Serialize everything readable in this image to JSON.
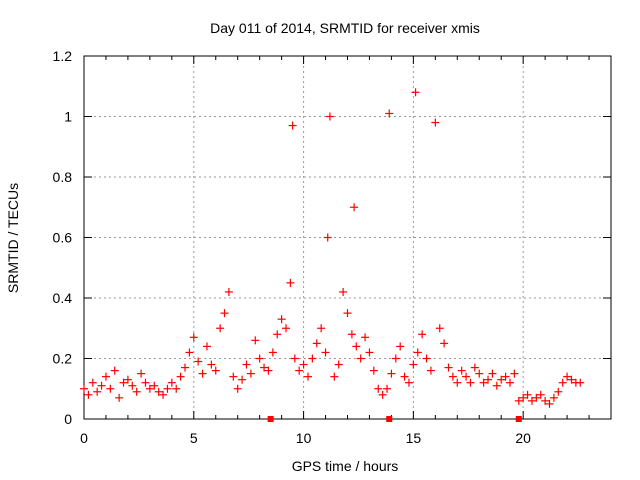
{
  "chart_data": {
    "type": "scatter",
    "title": "Day 011 of 2014, SRMTID for receiver xmis",
    "xlabel": "GPS time / hours",
    "ylabel": "SRMTID / TECUs",
    "xlim": [
      0,
      24
    ],
    "ylim": [
      0,
      1.2
    ],
    "xticks": [
      0,
      5,
      10,
      15,
      20
    ],
    "xtick_labels": [
      "0",
      "5",
      "10",
      "15",
      "20"
    ],
    "yticks": [
      0,
      0.2,
      0.4,
      0.6,
      0.8,
      1.0,
      1.2
    ],
    "ytick_labels": [
      "0",
      "0.2",
      "0.4",
      "0.6",
      "0.8",
      "1",
      "1.2"
    ],
    "grid": true,
    "marker": "+",
    "series_color": "#ff0000",
    "series": [
      {
        "name": "SRMTID",
        "x": [
          0.0,
          0.2,
          0.4,
          0.6,
          0.8,
          1.0,
          1.2,
          1.4,
          1.6,
          1.8,
          2.0,
          2.2,
          2.4,
          2.6,
          2.8,
          3.0,
          3.2,
          3.4,
          3.6,
          3.8,
          4.0,
          4.2,
          4.4,
          4.6,
          4.8,
          5.0,
          5.2,
          5.4,
          5.6,
          5.8,
          6.0,
          6.2,
          6.4,
          6.6,
          6.8,
          7.0,
          7.2,
          7.4,
          7.6,
          7.8,
          8.0,
          8.2,
          8.4,
          8.6,
          8.8,
          9.0,
          9.2,
          9.4,
          9.5,
          9.6,
          9.8,
          10.0,
          10.2,
          10.4,
          10.6,
          10.8,
          11.0,
          11.1,
          11.2,
          11.4,
          11.6,
          11.8,
          12.0,
          12.2,
          12.3,
          12.4,
          12.6,
          12.8,
          13.0,
          13.2,
          13.4,
          13.6,
          13.8,
          13.9,
          14.0,
          14.2,
          14.4,
          14.6,
          14.8,
          15.0,
          15.1,
          15.2,
          15.4,
          15.6,
          15.8,
          16.0,
          16.2,
          16.4,
          16.6,
          16.8,
          17.0,
          17.2,
          17.4,
          17.6,
          17.8,
          18.0,
          18.2,
          18.4,
          18.6,
          18.8,
          19.0,
          19.2,
          19.4,
          19.6,
          19.8,
          20.0,
          20.2,
          20.4,
          20.6,
          20.8,
          21.0,
          21.2,
          21.4,
          21.6,
          21.8,
          22.0,
          22.2,
          22.4,
          22.6
        ],
        "y": [
          0.1,
          0.08,
          0.12,
          0.09,
          0.11,
          0.14,
          0.1,
          0.16,
          0.07,
          0.12,
          0.13,
          0.11,
          0.09,
          0.15,
          0.12,
          0.1,
          0.11,
          0.09,
          0.08,
          0.1,
          0.12,
          0.1,
          0.14,
          0.17,
          0.22,
          0.27,
          0.19,
          0.15,
          0.24,
          0.18,
          0.16,
          0.3,
          0.35,
          0.42,
          0.14,
          0.1,
          0.13,
          0.18,
          0.15,
          0.26,
          0.2,
          0.17,
          0.16,
          0.22,
          0.28,
          0.33,
          0.3,
          0.45,
          0.97,
          0.2,
          0.16,
          0.18,
          0.14,
          0.2,
          0.25,
          0.3,
          0.22,
          0.6,
          1.0,
          0.14,
          0.18,
          0.42,
          0.35,
          0.28,
          0.7,
          0.24,
          0.2,
          0.27,
          0.22,
          0.16,
          0.1,
          0.08,
          0.1,
          1.01,
          0.15,
          0.2,
          0.24,
          0.14,
          0.12,
          0.18,
          1.08,
          0.22,
          0.28,
          0.2,
          0.16,
          0.98,
          0.3,
          0.25,
          0.17,
          0.14,
          0.12,
          0.16,
          0.14,
          0.12,
          0.17,
          0.15,
          0.12,
          0.13,
          0.15,
          0.11,
          0.13,
          0.14,
          0.12,
          0.15,
          0.06,
          0.07,
          0.08,
          0.06,
          0.07,
          0.08,
          0.06,
          0.05,
          0.07,
          0.09,
          0.12,
          0.14,
          0.13,
          0.12,
          0.12
        ]
      }
    ],
    "zero_markers_x": [
      8.5,
      13.9,
      19.8
    ]
  }
}
